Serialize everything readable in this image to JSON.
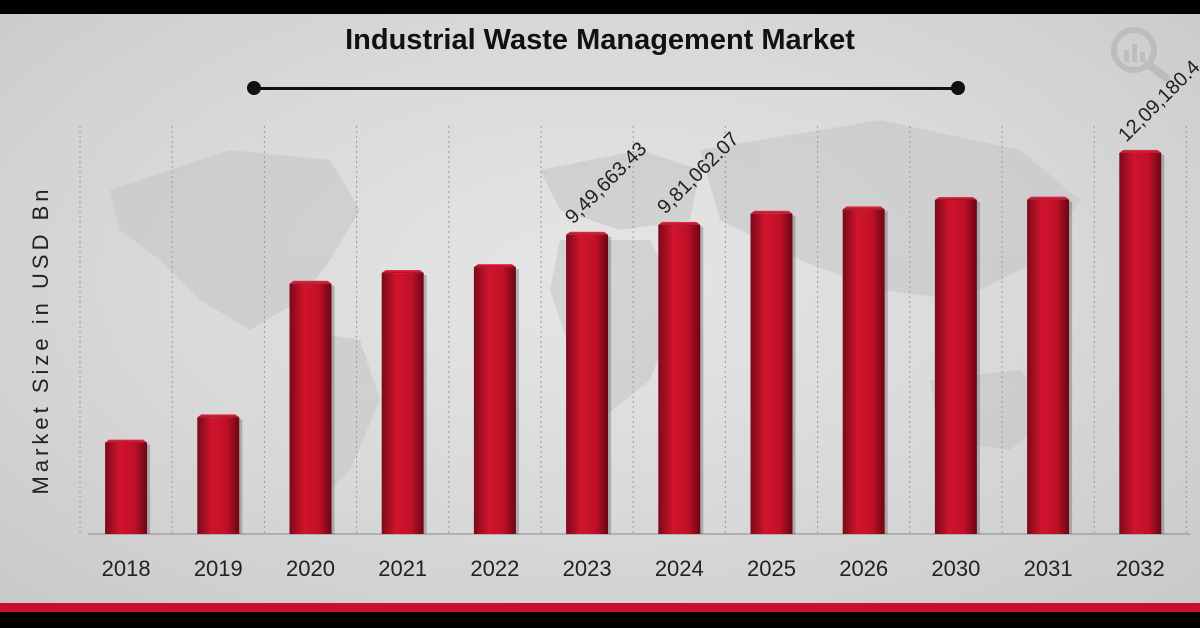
{
  "chart_data": {
    "type": "bar",
    "title": "Industrial Waste Management Market",
    "xlabel": "",
    "ylabel": "Market Size in USD Bn",
    "categories": [
      "2018",
      "2019",
      "2020",
      "2021",
      "2022",
      "2023",
      "2024",
      "2025",
      "2026",
      "2030",
      "2031",
      "2032"
    ],
    "values": [
      290000,
      370000,
      794000,
      828000,
      847000,
      949663.43,
      981062.07,
      1016000,
      1030000,
      1060000,
      1061000,
      1209180.4
    ],
    "data_labels": {
      "2023": "9,49,663.43",
      "2024": "9,81,062.07",
      "2032": "12,09,180.4"
    },
    "ylim": [
      0,
      1320000
    ],
    "grid": "vertical",
    "legend": "none",
    "colors": {
      "bar": "#c8102e",
      "bar_dark": "#7a0a1a",
      "accent": "#c8102e",
      "frame": "#000000"
    }
  },
  "logo": {
    "icon": "analytics-magnifier-icon"
  }
}
